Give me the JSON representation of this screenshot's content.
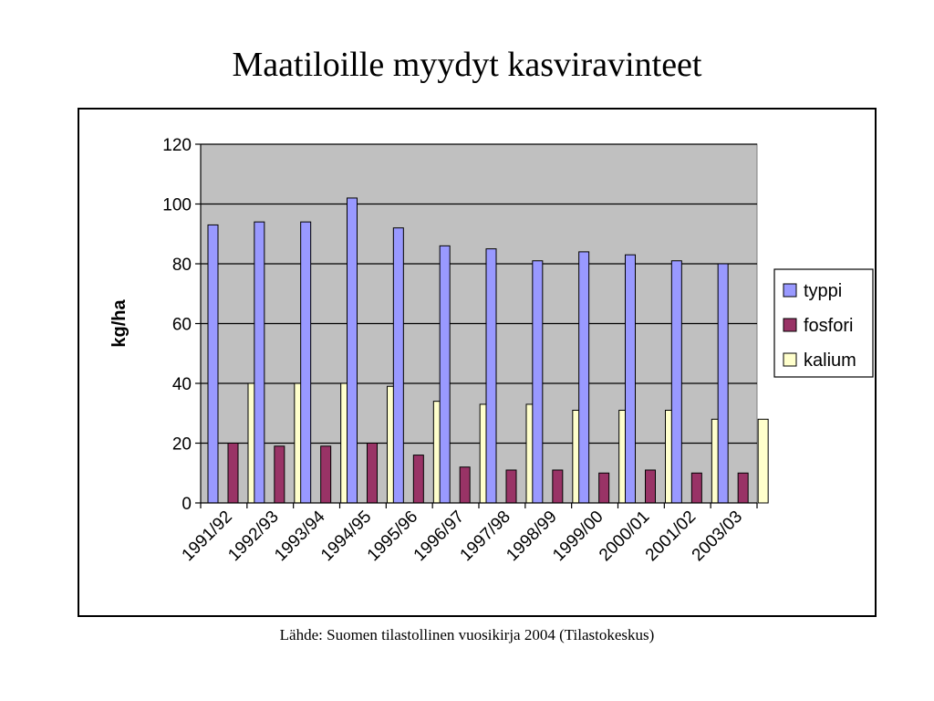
{
  "slide": {
    "title": "Maatiloille myydyt kasviravinteet",
    "source": "Lähde: Suomen tilastollinen vuosikirja 2004 (Tilastokeskus)"
  },
  "chart_data": {
    "type": "bar",
    "title": "Maatiloille myydyt kasviravinteet",
    "xlabel": "",
    "ylabel": "kg/ha",
    "ylim": [
      0,
      120
    ],
    "yticks": [
      0,
      20,
      40,
      60,
      80,
      100,
      120
    ],
    "grid": true,
    "legend_position": "right",
    "categories": [
      "1991/92",
      "1992/93",
      "1993/94",
      "1994/95",
      "1995/96",
      "1996/97",
      "1997/98",
      "1998/99",
      "1999/00",
      "2000/01",
      "2001/02",
      "2003/03"
    ],
    "series": [
      {
        "name": "typpi",
        "color": "#9999ff",
        "values": [
          93,
          94,
          94,
          102,
          92,
          86,
          85,
          81,
          84,
          83,
          81,
          80
        ]
      },
      {
        "name": "fosfori",
        "color": "#993366",
        "values": [
          20,
          19,
          19,
          20,
          16,
          12,
          11,
          11,
          10,
          11,
          10,
          10
        ]
      },
      {
        "name": "kalium",
        "color": "#ffffcc",
        "values": [
          40,
          40,
          40,
          39,
          34,
          33,
          33,
          31,
          31,
          31,
          28,
          28
        ]
      }
    ],
    "plot_background": "#c0c0c0"
  }
}
